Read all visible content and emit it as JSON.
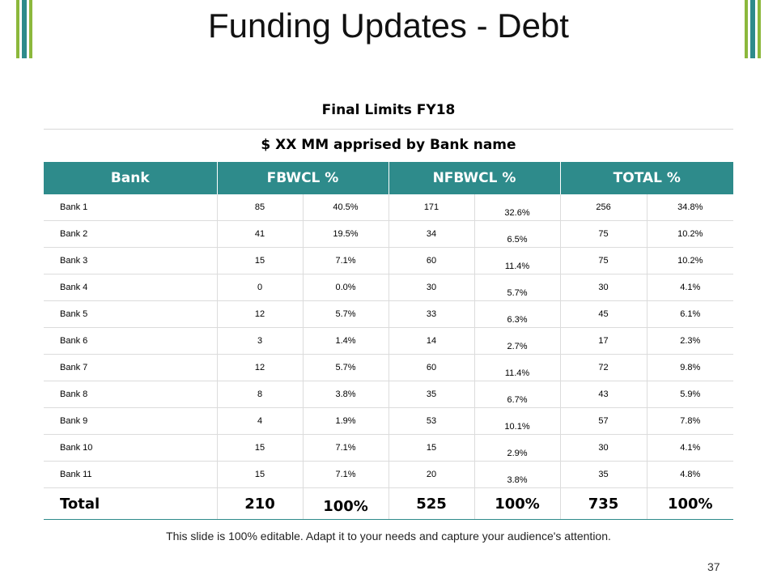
{
  "slide": {
    "title": "Funding Updates - Debt",
    "subtitle_1": "Final Limits FY18",
    "subtitle_2": "$ XX MM apprised by Bank name",
    "footer": "This slide is 100% editable. Adapt it to your needs and capture your audience's attention.",
    "page_number": "37"
  },
  "colors": {
    "header_bg": "#2e8b8b",
    "accent_green": "#8cb83c"
  },
  "table": {
    "headers": [
      "Bank",
      "FBWCL %",
      "NFBWCL %",
      "TOTAL %"
    ],
    "rows": [
      {
        "bank": "Bank 1",
        "fb": "85",
        "fb_pct": "40.5%",
        "nfb": "171",
        "nfb_pct": "32.6%",
        "tot": "256",
        "tot_pct": "34.8%"
      },
      {
        "bank": "Bank 2",
        "fb": "41",
        "fb_pct": "19.5%",
        "nfb": "34",
        "nfb_pct": "6.5%",
        "tot": "75",
        "tot_pct": "10.2%"
      },
      {
        "bank": "Bank 3",
        "fb": "15",
        "fb_pct": "7.1%",
        "nfb": "60",
        "nfb_pct": "11.4%",
        "tot": "75",
        "tot_pct": "10.2%"
      },
      {
        "bank": "Bank 4",
        "fb": "0",
        "fb_pct": "0.0%",
        "nfb": "30",
        "nfb_pct": "5.7%",
        "tot": "30",
        "tot_pct": "4.1%"
      },
      {
        "bank": "Bank 5",
        "fb": "12",
        "fb_pct": "5.7%",
        "nfb": "33",
        "nfb_pct": "6.3%",
        "tot": "45",
        "tot_pct": "6.1%"
      },
      {
        "bank": "Bank 6",
        "fb": "3",
        "fb_pct": "1.4%",
        "nfb": "14",
        "nfb_pct": "2.7%",
        "tot": "17",
        "tot_pct": "2.3%"
      },
      {
        "bank": "Bank 7",
        "fb": "12",
        "fb_pct": "5.7%",
        "nfb": "60",
        "nfb_pct": "11.4%",
        "tot": "72",
        "tot_pct": "9.8%"
      },
      {
        "bank": "Bank 8",
        "fb": "8",
        "fb_pct": "3.8%",
        "nfb": "35",
        "nfb_pct": "6.7%",
        "tot": "43",
        "tot_pct": "5.9%"
      },
      {
        "bank": "Bank 9",
        "fb": "4",
        "fb_pct": "1.9%",
        "nfb": "53",
        "nfb_pct": "10.1%",
        "tot": "57",
        "tot_pct": "7.8%"
      },
      {
        "bank": "Bank 10",
        "fb": "15",
        "fb_pct": "7.1%",
        "nfb": "15",
        "nfb_pct": "2.9%",
        "tot": "30",
        "tot_pct": "4.1%"
      },
      {
        "bank": "Bank 11",
        "fb": "15",
        "fb_pct": "7.1%",
        "nfb": "20",
        "nfb_pct": "3.8%",
        "tot": "35",
        "tot_pct": "4.8%"
      }
    ],
    "total": {
      "bank": "Total",
      "fb": "210",
      "fb_pct": "100%",
      "nfb": "525",
      "nfb_pct": "100%",
      "tot": "735",
      "tot_pct": "100%"
    }
  }
}
